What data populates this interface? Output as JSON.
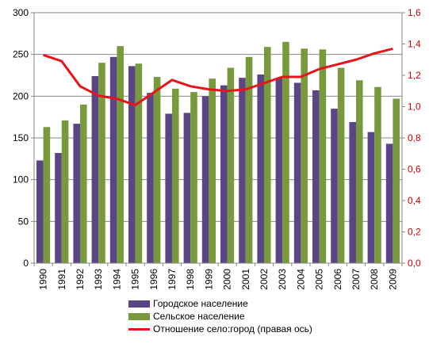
{
  "colors": {
    "urban": "#5a4585",
    "rural": "#789a3c",
    "ratio": "#e8141c",
    "axis_right": "#cc0000",
    "grid": "#888888"
  },
  "chart_data": {
    "type": "bar",
    "categories": [
      "1990",
      "1991",
      "1992",
      "1993",
      "1994",
      "1995",
      "1996",
      "1997",
      "1998",
      "1999",
      "2000",
      "2001",
      "2002",
      "2003",
      "2004",
      "2005",
      "2006",
      "2007",
      "2008",
      "2009"
    ],
    "series": [
      {
        "name": "Городское население",
        "type": "bar",
        "axis": "left",
        "values": [
          123,
          132,
          167,
          224,
          247,
          236,
          204,
          179,
          180,
          200,
          213,
          222,
          226,
          222,
          216,
          207,
          185,
          169,
          157,
          143
        ]
      },
      {
        "name": "Сельское население",
        "type": "bar",
        "axis": "left",
        "values": [
          163,
          171,
          190,
          240,
          260,
          239,
          223,
          209,
          205,
          221,
          234,
          247,
          259,
          265,
          257,
          256,
          234,
          219,
          211,
          197
        ]
      },
      {
        "name": "Отношение село:город (правая ось)",
        "type": "line",
        "axis": "right",
        "values": [
          1.33,
          1.29,
          1.13,
          1.07,
          1.05,
          1.01,
          1.09,
          1.17,
          1.13,
          1.11,
          1.1,
          1.11,
          1.15,
          1.19,
          1.19,
          1.24,
          1.27,
          1.3,
          1.34,
          1.37
        ]
      }
    ],
    "ylim": [
      0,
      300
    ],
    "y2lim": [
      0,
      1.6
    ],
    "yticks": [
      "0",
      "50",
      "100",
      "150",
      "200",
      "250",
      "300"
    ],
    "y2ticks": [
      "0,0",
      "0,2",
      "0,4",
      "0,6",
      "0,8",
      "1,0",
      "1,2",
      "1,4",
      "1,6"
    ],
    "grid": true,
    "legend_position": "bottom"
  }
}
